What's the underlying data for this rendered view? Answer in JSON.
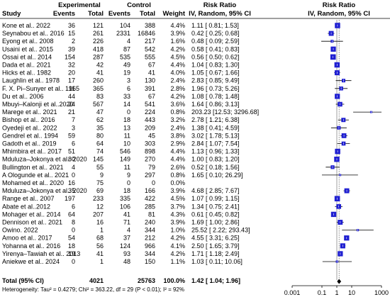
{
  "headers": {
    "study": "Study",
    "experimental": "Experimental",
    "control": "Control",
    "events": "Events",
    "total": "Total",
    "weight": "Weight",
    "risk_ratio": "Risk Ratio",
    "method": "IV, Random, 95% CI"
  },
  "chart_data": {
    "type": "forest",
    "title": "",
    "xlabel": "",
    "scale": "log",
    "xlim": [
      0.001,
      1000
    ],
    "x_ticks": [
      "0.001",
      "0.1",
      "1",
      "10",
      "1000"
    ],
    "rows": [
      {
        "study": "Kone et al.. 2022",
        "e_events": "36",
        "e_total": "121",
        "c_events": "104",
        "c_total": "388",
        "weight": "4.4%",
        "rr": 1.11,
        "lo": 0.81,
        "hi": 1.53,
        "ci_text": "1.11 [ 0.81; 1.53]"
      },
      {
        "study": "Seynabou et al.. 2016",
        "e_events": "15",
        "e_total": "261",
        "c_events": "2331",
        "c_total": "16846",
        "weight": "3.9%",
        "rr": 0.42,
        "lo": 0.25,
        "hi": 0.68,
        "ci_text": "0.42 [ 0.25; 0.68]"
      },
      {
        "study": "Eyong et al.. 2008",
        "e_events": "2",
        "e_total": "226",
        "c_events": "4",
        "c_total": "217",
        "weight": "1.6%",
        "rr": 0.48,
        "lo": 0.09,
        "hi": 2.59,
        "ci_text": "0.48 [ 0.09; 2.59]"
      },
      {
        "study": "Usaini et al.. 2015",
        "e_events": "39",
        "e_total": "418",
        "c_events": "87",
        "c_total": "542",
        "weight": "4.2%",
        "rr": 0.58,
        "lo": 0.41,
        "hi": 0.83,
        "ci_text": "0.58 [ 0.41; 0.83]"
      },
      {
        "study": "Ossai et al.. 2014",
        "e_events": "154",
        "e_total": "287",
        "c_events": "535",
        "c_total": "555",
        "weight": "4.5%",
        "rr": 0.56,
        "lo": 0.5,
        "hi": 0.62,
        "ci_text": "0.56 [ 0.50; 0.62]"
      },
      {
        "study": "Dada et al.. 2021",
        "e_events": "32",
        "e_total": "42",
        "c_events": "49",
        "c_total": "67",
        "weight": "4.4%",
        "rr": 1.04,
        "lo": 0.83,
        "hi": 1.3,
        "ci_text": "1.04 [ 0.83; 1.30]"
      },
      {
        "study": "Hicks et al.. 1982",
        "e_events": "20",
        "e_total": "41",
        "c_events": "19",
        "c_total": "41",
        "weight": "4.0%",
        "rr": 1.05,
        "lo": 0.67,
        "hi": 1.66,
        "ci_text": "1.05 [ 0.67; 1.66]"
      },
      {
        "study": "Laughlin et al.. 1978",
        "e_events": "17",
        "e_total": "260",
        "c_events": "3",
        "c_total": "130",
        "weight": "2.4%",
        "rr": 2.83,
        "lo": 0.85,
        "hi": 9.49,
        "ci_text": "2.83 [ 0.85; 9.49]"
      },
      {
        "study": "F. X. Pi–Sunyer et al.. 1965",
        "e_events": "11",
        "e_total": "365",
        "c_events": "6",
        "c_total": "391",
        "weight": "2.8%",
        "rr": 1.96,
        "lo": 0.73,
        "hi": 5.26,
        "ci_text": "1.96 [ 0.73; 5.26]"
      },
      {
        "study": "Du et al.. 2006",
        "e_events": "44",
        "e_total": "83",
        "c_events": "33",
        "c_total": "67",
        "weight": "4.2%",
        "rr": 1.08,
        "lo": 0.78,
        "hi": 1.48,
        "ci_text": "1.08 [ 0.78; 1.48]"
      },
      {
        "study": "Mbuyi–Kalonji et al..2020",
        "e_events": "24",
        "e_total": "567",
        "c_events": "14",
        "c_total": "541",
        "weight": "3.6%",
        "rr": 1.64,
        "lo": 0.86,
        "hi": 3.13,
        "ci_text": "1.64 [ 0.86; 3.13]"
      },
      {
        "study": "Marege et al.. 2021",
        "e_events": "21",
        "e_total": "47",
        "c_events": "0",
        "c_total": "224",
        "weight": "0.8%",
        "rr": 203.23,
        "lo": 12.53,
        "hi": 3296.68,
        "ci_text": "203.23 [12.53; 3296.68]"
      },
      {
        "study": "Bishop et al.. 2016",
        "e_events": "7",
        "e_total": "62",
        "c_events": "18",
        "c_total": "443",
        "weight": "3.2%",
        "rr": 2.78,
        "lo": 1.21,
        "hi": 6.38,
        "ci_text": "2.78 [ 1.21; 6.38]"
      },
      {
        "study": "Oyedeji et al.. 2022",
        "e_events": "3",
        "e_total": "35",
        "c_events": "13",
        "c_total": "209",
        "weight": "2.4%",
        "rr": 1.38,
        "lo": 0.41,
        "hi": 4.59,
        "ci_text": "1.38 [ 0.41; 4.59]"
      },
      {
        "study": "Gendrel et al.. 1994",
        "e_events": "59",
        "e_total": "80",
        "c_events": "11",
        "c_total": "45",
        "weight": "3.8%",
        "rr": 3.02,
        "lo": 1.78,
        "hi": 5.13,
        "ci_text": "3.02 [ 1.78; 5.13]"
      },
      {
        "study": "Gadoth et al.. 2019",
        "e_events": "6",
        "e_total": "64",
        "c_events": "10",
        "c_total": "303",
        "weight": "2.9%",
        "rr": 2.84,
        "lo": 1.07,
        "hi": 7.54,
        "ci_text": "2.84 [ 1.07; 7.54]"
      },
      {
        "study": "Mhimbira et al.. 2017",
        "e_events": "51",
        "e_total": "74",
        "c_events": "546",
        "c_total": "898",
        "weight": "4.4%",
        "rr": 1.13,
        "lo": 0.96,
        "hi": 1.33,
        "ci_text": "1.13 [ 0.96; 1.33]"
      },
      {
        "study": "Mduluza–Jokonya et al.. 2020",
        "e_events": "80",
        "e_total": "145",
        "c_events": "149",
        "c_total": "270",
        "weight": "4.4%",
        "rr": 1.0,
        "lo": 0.83,
        "hi": 1.2,
        "ci_text": "1.00 [ 0.83; 1.20]"
      },
      {
        "study": "Bullington et al.. 2021",
        "e_events": "4",
        "e_total": "55",
        "c_events": "11",
        "c_total": "79",
        "weight": "2.6%",
        "rr": 0.52,
        "lo": 0.18,
        "hi": 1.56,
        "ci_text": "0.52 [ 0.18; 1.56]"
      },
      {
        "study": " A Ologunde et al.. 2021",
        "e_events": "0",
        "e_total": "9",
        "c_events": "9",
        "c_total": "297",
        "weight": "0.8%",
        "rr": 1.65,
        "lo": 0.1,
        "hi": 26.29,
        "ci_text": "1.65 [ 0.10; 26.29]"
      },
      {
        "study": "Mohamed et al.. 2020",
        "e_events": "16",
        "e_total": "75",
        "c_events": "0",
        "c_total": "0",
        "weight": "0.0%",
        "rr": null,
        "lo": null,
        "hi": null,
        "ci_text": ""
      },
      {
        "study": "Mduluza–Jokonya et al.. 2020",
        "e_events": "35",
        "e_total": "69",
        "c_events": "18",
        "c_total": "166",
        "weight": "3.9%",
        "rr": 4.68,
        "lo": 2.85,
        "hi": 7.67,
        "ci_text": "4.68 [ 2.85; 7.67]"
      },
      {
        "study": "Range et al.. 2007",
        "e_events": "197",
        "e_total": "233",
        "c_events": "335",
        "c_total": "422",
        "weight": "4.5%",
        "rr": 1.07,
        "lo": 0.99,
        "hi": 1.15,
        "ci_text": "1.07 [ 0.99; 1.15]"
      },
      {
        "study": "Abate et al..2012",
        "e_events": "6",
        "e_total": "12",
        "c_events": "106",
        "c_total": "285",
        "weight": "3.7%",
        "rr": 1.34,
        "lo": 0.75,
        "hi": 2.41,
        "ci_text": "1.34 [ 0.75; 2.41]"
      },
      {
        "study": "Mohager et al.. 2014",
        "e_events": "64",
        "e_total": "207",
        "c_events": "41",
        "c_total": "81",
        "weight": "4.3%",
        "rr": 0.61,
        "lo": 0.45,
        "hi": 0.82,
        "ci_text": "0.61 [ 0.45; 0.82]"
      },
      {
        "study": "Dennison et al.. 2021",
        "e_events": "8",
        "e_total": "16",
        "c_events": "71",
        "c_total": "240",
        "weight": "3.9%",
        "rr": 1.69,
        "lo": 1.0,
        "hi": 2.86,
        "ci_text": "1.69 [ 1.00; 2.86]"
      },
      {
        "study": "Owino. 2022",
        "e_events": "0",
        "e_total": "1",
        "c_events": "4",
        "c_total": "344",
        "weight": "1.0%",
        "rr": 25.52,
        "lo": 2.22,
        "hi": 293.43,
        "ci_text": "25.52 [ 2.22; 293.43]"
      },
      {
        "study": "Amoo et al.. 2017",
        "e_events": "54",
        "e_total": "68",
        "c_events": "37",
        "c_total": "212",
        "weight": "4.2%",
        "rr": 4.55,
        "lo": 3.31,
        "hi": 6.25,
        "ci_text": "4.55 [ 3.31; 6.25]"
      },
      {
        "study": "Yohanna et al.. 2016",
        "e_events": "18",
        "e_total": "56",
        "c_events": "124",
        "c_total": "966",
        "weight": "4.1%",
        "rr": 2.5,
        "lo": 1.65,
        "hi": 3.79,
        "ci_text": "2.50 [ 1.65; 3.79]"
      },
      {
        "study": "Yirenya–Tawiah et al.. 2013",
        "e_events": "19",
        "e_total": "41",
        "c_events": "93",
        "c_total": "344",
        "weight": "4.2%",
        "rr": 1.71,
        "lo": 1.18,
        "hi": 2.49,
        "ci_text": "1.71 [ 1.18; 2.49]"
      },
      {
        "study": "Aniekwe et al.. 2024",
        "e_events": "0",
        "e_total": "1",
        "c_events": "48",
        "c_total": "150",
        "weight": "1.1%",
        "rr": 1.03,
        "lo": 0.11,
        "hi": 10.06,
        "ci_text": "1.03 [ 0.11; 10.06]"
      }
    ],
    "total": {
      "label": "Total (95% CI)",
      "e_total": "4021",
      "c_total": "25763",
      "weight": "100.0%",
      "rr": 1.42,
      "lo": 1.04,
      "hi": 1.96,
      "ci_text": "1.42 [ 1.04; 1.96]"
    },
    "heterogeneity": "Heterogeneity: Tau² = 0.4279; Chi² = 363.22, df = 29 (P < 0.01); I² = 92%"
  }
}
